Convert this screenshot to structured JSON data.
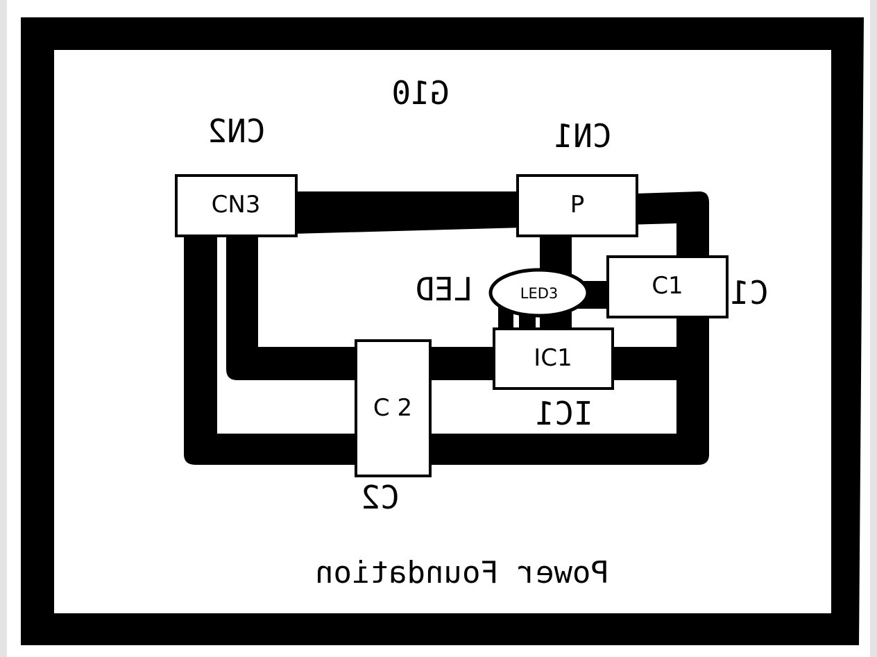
{
  "silkscreen": {
    "board_id": "G10",
    "cn2": "CN2",
    "cn1": "CN1",
    "led": "LED",
    "c1": "C1",
    "ic1": "IC1",
    "c2": "C2",
    "footer": "Power Foundation"
  },
  "components": {
    "cn3": "CN3",
    "p": "P",
    "led3": "LED3",
    "c1": "C1",
    "ic1": "IC1",
    "c2": "C 2"
  },
  "colors": {
    "trace": "#000000",
    "board": "#ffffff",
    "edge": "#e4e4e4"
  }
}
